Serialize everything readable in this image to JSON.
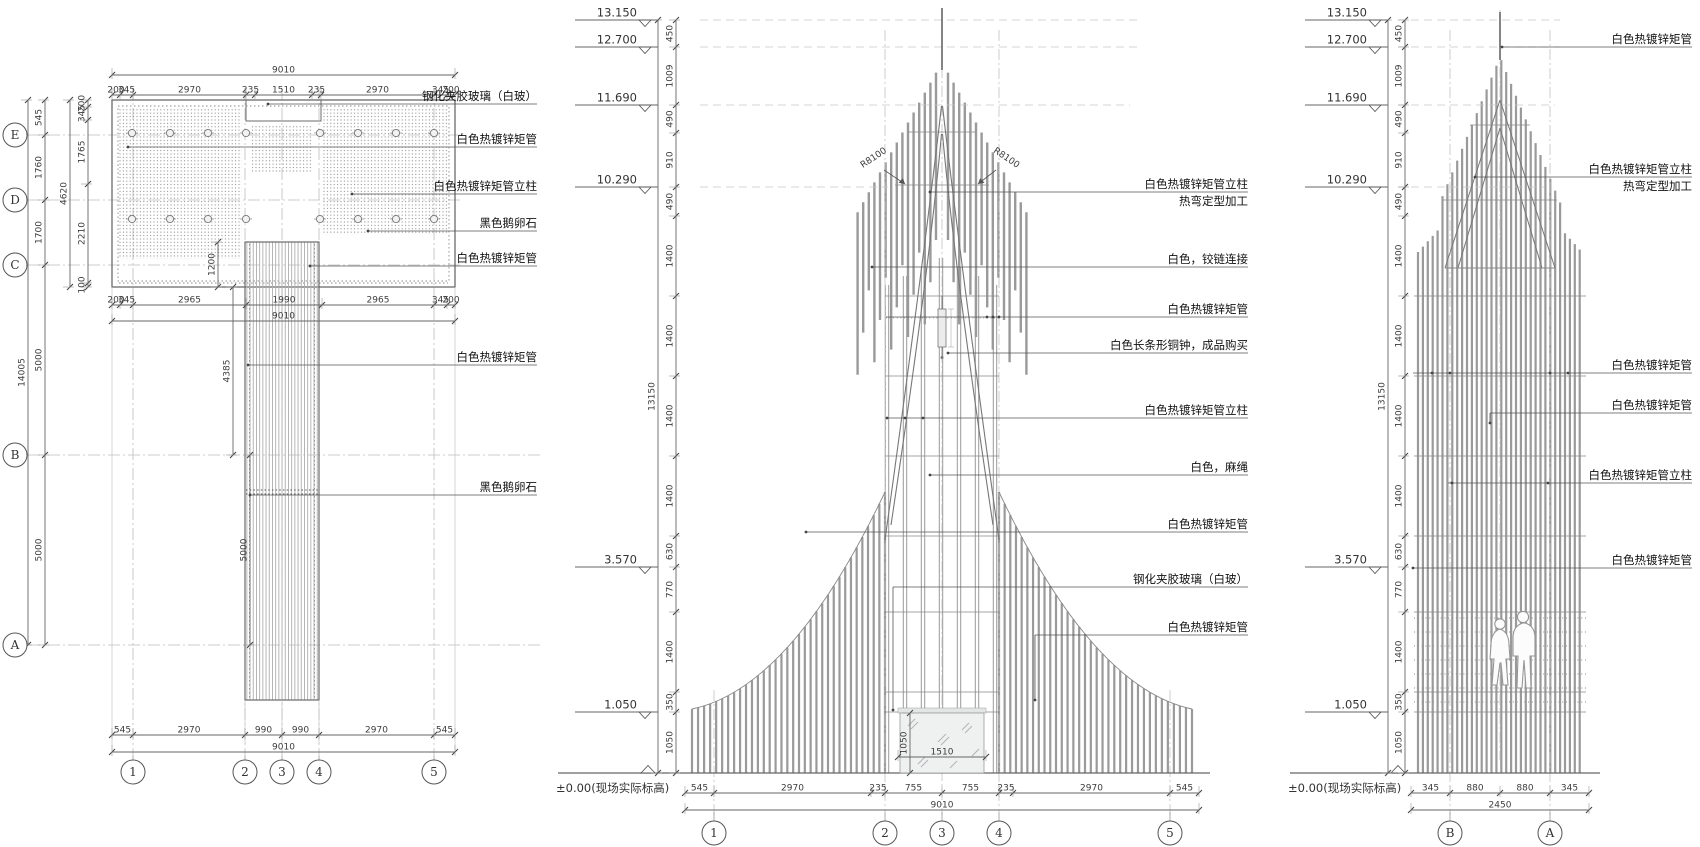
{
  "plan": {
    "annotations": [
      "钢化夹胶玻璃（白玻）",
      "白色热镀锌矩管",
      "白色热镀锌矩管立柱",
      "黑色鹅卵石",
      "白色热镀锌矩管",
      "白色热镀锌矩管",
      "黑色鹅卵石"
    ],
    "row_bubbles": [
      "E",
      "D",
      "C",
      "B",
      "A"
    ],
    "col_bubbles": [
      "1",
      "2",
      "3",
      "4",
      "5"
    ],
    "dims": {
      "top_total": "9010",
      "top_chain": [
        "200",
        "345",
        "2970",
        "235",
        "1510",
        "235",
        "2970",
        "345",
        "200"
      ],
      "left_total": "14005",
      "left_chain": [
        "545",
        "1760",
        "1700",
        "5000",
        "5000"
      ],
      "inner_total": "4620",
      "inner_chain": [
        "200",
        "345",
        "1765",
        "2210",
        "100"
      ],
      "mid_total": "9010",
      "mid_chain": [
        "200",
        "345",
        "2965",
        "1990",
        "2965",
        "345",
        "200"
      ],
      "stem": [
        "1200",
        "4385",
        "5000"
      ],
      "bottom_total": "9010",
      "bottom_chain": [
        "545",
        "2970",
        "990",
        "990",
        "2970",
        "545"
      ]
    }
  },
  "front": {
    "levels": [
      "13.150",
      "12.700",
      "11.690",
      "10.290",
      "3.570",
      "1.050"
    ],
    "datum": "±0.00(现场实际标高)",
    "height_total": "13150",
    "height_chain": [
      "450",
      "1009",
      "490",
      "910",
      "490",
      "1400",
      "1400",
      "1400",
      "1400",
      "630",
      "770",
      "1400",
      "350",
      "1050"
    ],
    "bottom_total": "9010",
    "bottom_chain": [
      "545",
      "2970",
      "235",
      "755",
      "755",
      "235",
      "2970",
      "545"
    ],
    "col_bubbles": [
      "1",
      "2",
      "3",
      "4",
      "5"
    ],
    "door_dims": {
      "width": "1510",
      "height": "1050"
    },
    "radius_labels": [
      "R8100",
      "R8100"
    ],
    "annotations": [
      {
        "text": "白色热镀锌矩管立柱",
        "sub": "热弯定型加工"
      },
      {
        "text": "白色，铰链连接"
      },
      {
        "text": "白色热镀锌矩管"
      },
      {
        "text": "白色长条形铜钟，成品购买"
      },
      {
        "text": "白色热镀锌矩管立柱"
      },
      {
        "text": "白色，麻绳"
      },
      {
        "text": "白色热镀锌矩管"
      },
      {
        "text": "钢化夹胶玻璃（白玻）"
      },
      {
        "text": "白色热镀锌矩管"
      }
    ]
  },
  "side": {
    "levels": [
      "13.150",
      "12.700",
      "11.690",
      "10.290",
      "3.570",
      "1.050"
    ],
    "datum": "±0.00(现场实际标高)",
    "height_total": "13150",
    "height_chain": [
      "450",
      "1009",
      "490",
      "910",
      "490",
      "1400",
      "1400",
      "1400",
      "1400",
      "630",
      "770",
      "1400",
      "350",
      "1050"
    ],
    "bottom_total": "2450",
    "bottom_chain": [
      "345",
      "880",
      "880",
      "345"
    ],
    "col_bubbles": [
      "B",
      "A"
    ],
    "annotations": [
      {
        "text": "白色热镀锌矩管"
      },
      {
        "text": "白色热镀锌矩管立柱",
        "sub": "热弯定型加工"
      },
      {
        "text": "白色热镀锌矩管"
      },
      {
        "text": "白色热镀锌矩管"
      },
      {
        "text": "白色热镀锌矩管立柱"
      },
      {
        "text": "白色热镀锌矩管"
      }
    ]
  }
}
